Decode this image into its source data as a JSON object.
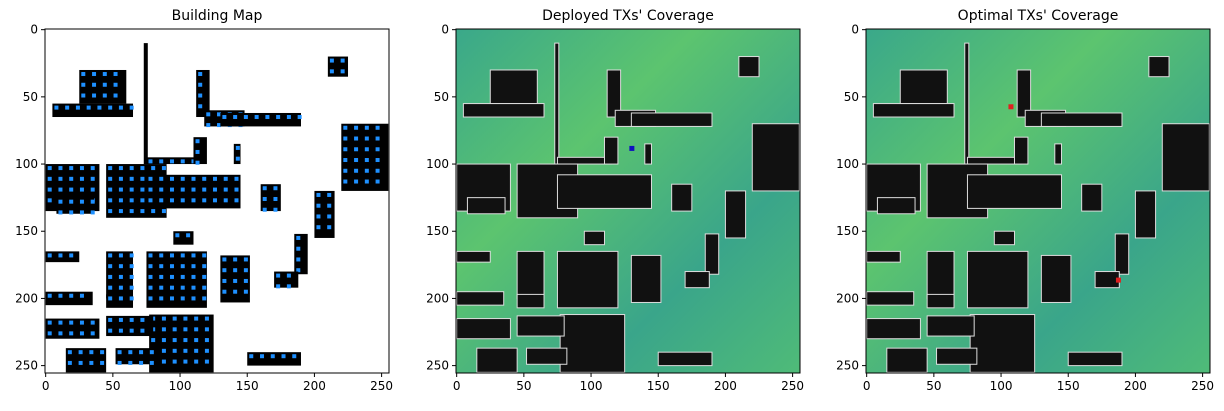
{
  "chart_data": [
    {
      "type": "image",
      "title": "Building Map",
      "style": "building",
      "xlim": [
        -0.5,
        255.5
      ],
      "ylim": [
        255.5,
        -0.5
      ],
      "xticks": [
        0,
        50,
        100,
        150,
        200,
        250
      ],
      "yticks": [
        0,
        50,
        100,
        150,
        200,
        250
      ]
    },
    {
      "type": "image",
      "title": "Deployed TXs' Coverage",
      "style": "coverage",
      "xlim": [
        -0.5,
        255.5
      ],
      "ylim": [
        255.5,
        -0.5
      ],
      "xticks": [
        0,
        50,
        100,
        150,
        200,
        250
      ],
      "yticks": [
        0,
        50,
        100,
        150,
        200,
        250
      ]
    },
    {
      "type": "image",
      "title": "Optimal TXs' Coverage",
      "style": "coverage",
      "xlim": [
        -0.5,
        255.5
      ],
      "ylim": [
        255.5,
        -0.5
      ],
      "xticks": [
        0,
        50,
        100,
        150,
        200,
        250
      ],
      "yticks": [
        0,
        50,
        100,
        150,
        200,
        250
      ]
    }
  ]
}
